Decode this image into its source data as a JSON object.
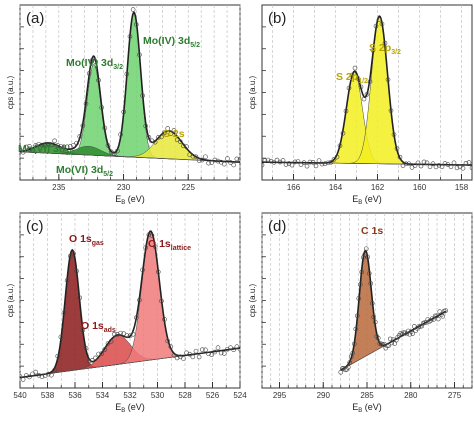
{
  "chart_data": [
    {
      "type": "line",
      "panel_label": "(a)",
      "xlabel": "E_B (eV)",
      "ylabel": "cps (a.u.)",
      "x_reversed": true,
      "xlim": [
        238,
        221
      ],
      "x_ticks": [
        235,
        230,
        225
      ],
      "grid": "vertical-dashed",
      "annotations": [
        {
          "text": "Mo(IV) 3d",
          "sub": "3/2",
          "color": "#2e7d32"
        },
        {
          "text": "Mo(IV) 3d",
          "sub": "5/2",
          "color": "#2e7d32"
        },
        {
          "text": "Mo(VI) 3d",
          "sub": "3/2",
          "color": "#2e7d32"
        },
        {
          "text": "Mo(VI) 3d",
          "sub": "5/2",
          "color": "#2e7d32"
        },
        {
          "text": "S 2s",
          "sub": "",
          "color": "#b8a400"
        }
      ],
      "peaks": [
        {
          "name": "Mo(IV) 3d3/2",
          "center": 232.3,
          "fwhm": 1.2,
          "height": 0.62,
          "color": "#6fd46f"
        },
        {
          "name": "Mo(IV) 3d5/2",
          "center": 229.2,
          "fwhm": 1.2,
          "height": 0.98,
          "color": "#6fd46f"
        },
        {
          "name": "Mo(VI) 3d3/2",
          "center": 235.8,
          "fwhm": 2.2,
          "height": 0.07,
          "color": "#2e8b2e"
        },
        {
          "name": "Mo(VI) 3d5/2",
          "center": 232.7,
          "fwhm": 2.2,
          "height": 0.06,
          "color": "#2e8b2e"
        },
        {
          "name": "S 2s",
          "center": 226.5,
          "fwhm": 2.4,
          "height": 0.19,
          "color": "#e8e83a"
        }
      ],
      "baseline": {
        "x": [
          238,
          221
        ],
        "y": [
          0.12,
          0.05
        ]
      }
    },
    {
      "type": "line",
      "panel_label": "(b)",
      "xlabel": "E_B (eV)",
      "ylabel": "cps (a.u.)",
      "x_reversed": true,
      "xlim": [
        167.5,
        157.5
      ],
      "x_ticks": [
        166,
        164,
        162,
        160,
        158
      ],
      "grid": "vertical-dashed",
      "annotations": [
        {
          "text": "S 2p",
          "sub": "1/2",
          "color": "#b8a400"
        },
        {
          "text": "S 2p",
          "sub": "3/2",
          "color": "#b8a400"
        }
      ],
      "peaks": [
        {
          "name": "S 2p1/2",
          "center": 163.1,
          "fwhm": 0.9,
          "height": 0.62,
          "color": "#f2ee1e"
        },
        {
          "name": "S 2p3/2",
          "center": 161.9,
          "fwhm": 0.9,
          "height": 1.0,
          "color": "#f2ee1e"
        }
      ],
      "baseline": {
        "x": [
          167.5,
          157.5
        ],
        "y": [
          0.05,
          0.03
        ]
      }
    },
    {
      "type": "line",
      "panel_label": "(c)",
      "xlabel": "E_B (eV)",
      "ylabel": "cps (a.u.)",
      "x_reversed": true,
      "xlim": [
        540,
        524
      ],
      "x_ticks": [
        540,
        538,
        536,
        534,
        532,
        530,
        528,
        526,
        524
      ],
      "grid": "vertical-dashed",
      "annotations": [
        {
          "text": "O 1s",
          "sub": "gas",
          "color": "#8b1a1a"
        },
        {
          "text": "O 1s",
          "sub": "ads",
          "color": "#8b1a1a"
        },
        {
          "text": "O 1s",
          "sub": "lattice",
          "color": "#8b1a1a"
        }
      ],
      "peaks": [
        {
          "name": "O 1s gas",
          "center": 536.2,
          "fwhm": 1.2,
          "height": 0.82,
          "color": "#8b1a1a"
        },
        {
          "name": "O 1s ads",
          "center": 532.9,
          "fwhm": 2.2,
          "height": 0.2,
          "color": "#d94a4a"
        },
        {
          "name": "O 1s lattice",
          "center": 530.5,
          "fwhm": 1.5,
          "height": 0.87,
          "color": "#f07a7a"
        }
      ],
      "baseline": {
        "x": [
          540,
          524
        ],
        "y": [
          0.0,
          0.2
        ]
      }
    },
    {
      "type": "line",
      "panel_label": "(d)",
      "xlabel": "E_B (eV)",
      "ylabel": "cps (a.u.)",
      "x_reversed": true,
      "xlim": [
        297,
        273
      ],
      "x_ticks": [
        295,
        290,
        285,
        280,
        275
      ],
      "grid": "vertical-dashed",
      "annotations": [
        {
          "text": "C 1s",
          "sub": "",
          "color": "#8b3a1a"
        }
      ],
      "peaks": [
        {
          "name": "C 1s",
          "center": 285.2,
          "fwhm": 1.6,
          "height": 0.72,
          "color": "#b8683a"
        }
      ],
      "baseline": {
        "x": [
          288,
          276
        ],
        "y": [
          0.05,
          0.45
        ]
      }
    }
  ]
}
